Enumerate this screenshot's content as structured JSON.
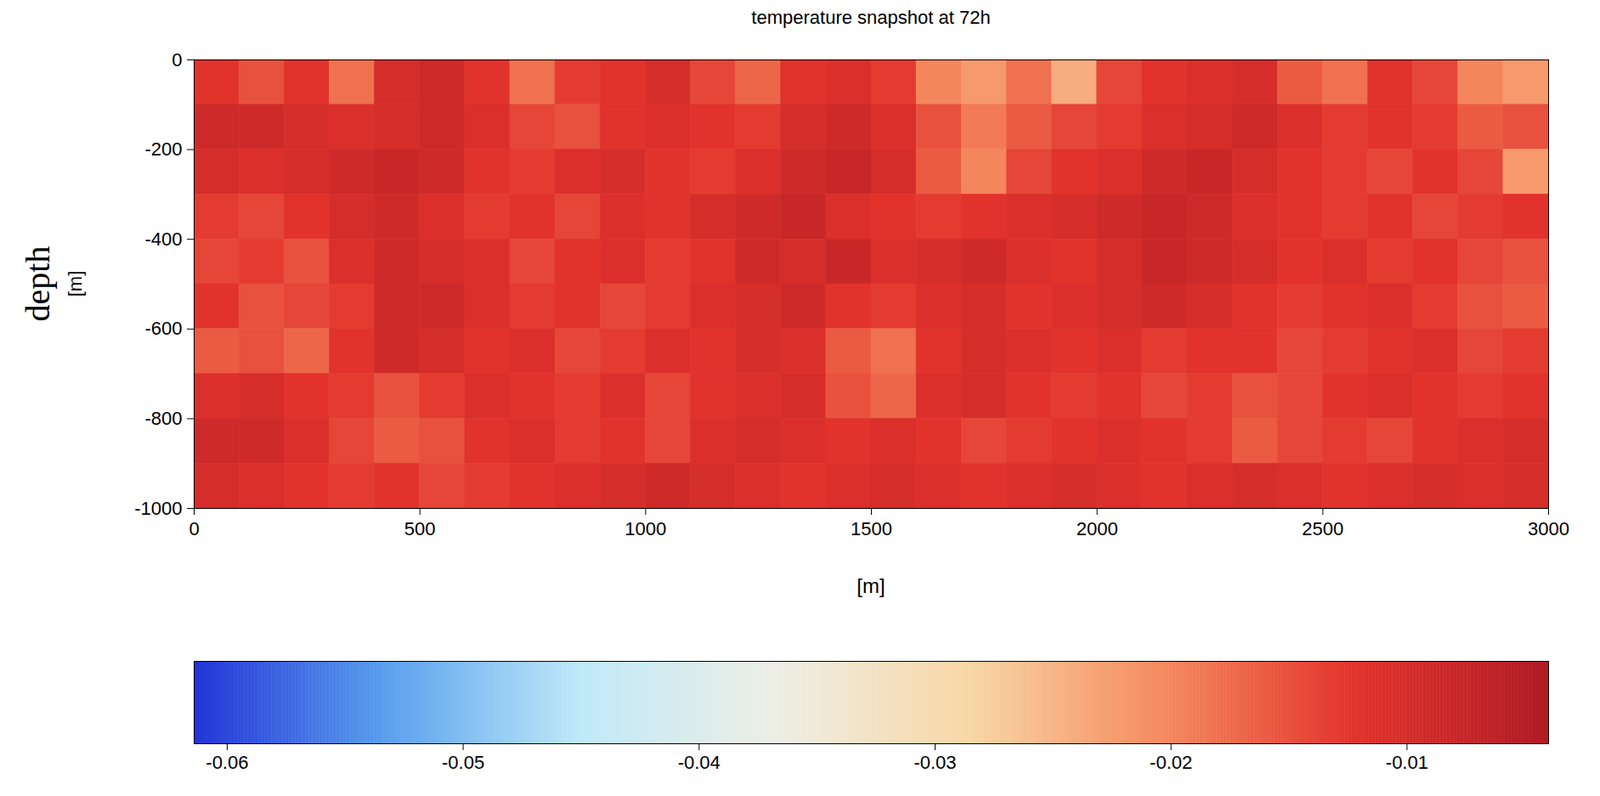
{
  "chart_data": {
    "type": "heatmap",
    "title": "temperature  snapshot at 72h",
    "xlabel": "[m]",
    "ylabel": [
      "depth",
      "[m]"
    ],
    "xlim": [
      0,
      3000
    ],
    "ylim": [
      -1000,
      0
    ],
    "xticks": [
      0,
      500,
      1000,
      1500,
      2000,
      2500,
      3000
    ],
    "yticks": [
      -1000,
      -800,
      -600,
      -400,
      -200,
      0
    ],
    "cells": {
      "x_edges": [
        0,
        100,
        200,
        300,
        400,
        500,
        600,
        700,
        800,
        900,
        1000,
        1100,
        1200,
        1300,
        1400,
        1500,
        1600,
        1700,
        1800,
        1900,
        2000,
        2100,
        2200,
        2300,
        2400,
        2500,
        2600,
        2700,
        2800,
        2900,
        3000
      ],
      "y_edges": [
        0,
        -100,
        -200,
        -300,
        -400,
        -500,
        -600,
        -700,
        -800,
        -900,
        -1000
      ],
      "values": [
        [
          -0.012,
          -0.015,
          -0.012,
          -0.018,
          -0.01,
          -0.009,
          -0.012,
          -0.018,
          -0.013,
          -0.012,
          -0.01,
          -0.014,
          -0.017,
          -0.012,
          -0.011,
          -0.013,
          -0.02,
          -0.022,
          -0.018,
          -0.024,
          -0.014,
          -0.012,
          -0.011,
          -0.01,
          -0.016,
          -0.018,
          -0.012,
          -0.014,
          -0.02,
          -0.022
        ],
        [
          -0.009,
          -0.009,
          -0.01,
          -0.011,
          -0.01,
          -0.009,
          -0.011,
          -0.014,
          -0.015,
          -0.012,
          -0.011,
          -0.012,
          -0.013,
          -0.01,
          -0.009,
          -0.011,
          -0.015,
          -0.019,
          -0.016,
          -0.014,
          -0.013,
          -0.011,
          -0.01,
          -0.009,
          -0.011,
          -0.013,
          -0.012,
          -0.013,
          -0.016,
          -0.015
        ],
        [
          -0.01,
          -0.011,
          -0.01,
          -0.009,
          -0.008,
          -0.009,
          -0.012,
          -0.013,
          -0.011,
          -0.01,
          -0.012,
          -0.013,
          -0.011,
          -0.009,
          -0.008,
          -0.01,
          -0.016,
          -0.02,
          -0.014,
          -0.012,
          -0.011,
          -0.009,
          -0.008,
          -0.01,
          -0.012,
          -0.013,
          -0.014,
          -0.012,
          -0.014,
          -0.022
        ],
        [
          -0.013,
          -0.014,
          -0.012,
          -0.01,
          -0.009,
          -0.011,
          -0.013,
          -0.012,
          -0.014,
          -0.011,
          -0.012,
          -0.01,
          -0.009,
          -0.008,
          -0.011,
          -0.012,
          -0.013,
          -0.012,
          -0.011,
          -0.01,
          -0.009,
          -0.008,
          -0.009,
          -0.011,
          -0.012,
          -0.013,
          -0.012,
          -0.014,
          -0.013,
          -0.012
        ],
        [
          -0.014,
          -0.013,
          -0.015,
          -0.011,
          -0.009,
          -0.01,
          -0.011,
          -0.014,
          -0.012,
          -0.011,
          -0.013,
          -0.012,
          -0.009,
          -0.01,
          -0.008,
          -0.011,
          -0.01,
          -0.009,
          -0.011,
          -0.012,
          -0.01,
          -0.008,
          -0.009,
          -0.01,
          -0.012,
          -0.011,
          -0.013,
          -0.012,
          -0.014,
          -0.015
        ],
        [
          -0.012,
          -0.015,
          -0.014,
          -0.013,
          -0.009,
          -0.009,
          -0.011,
          -0.013,
          -0.012,
          -0.014,
          -0.013,
          -0.011,
          -0.01,
          -0.009,
          -0.012,
          -0.013,
          -0.011,
          -0.01,
          -0.012,
          -0.011,
          -0.01,
          -0.009,
          -0.01,
          -0.012,
          -0.013,
          -0.012,
          -0.011,
          -0.013,
          -0.015,
          -0.016
        ],
        [
          -0.016,
          -0.015,
          -0.017,
          -0.012,
          -0.009,
          -0.01,
          -0.012,
          -0.011,
          -0.014,
          -0.013,
          -0.011,
          -0.012,
          -0.01,
          -0.011,
          -0.016,
          -0.018,
          -0.012,
          -0.01,
          -0.011,
          -0.012,
          -0.011,
          -0.013,
          -0.012,
          -0.012,
          -0.014,
          -0.013,
          -0.012,
          -0.011,
          -0.014,
          -0.013
        ],
        [
          -0.011,
          -0.01,
          -0.012,
          -0.013,
          -0.015,
          -0.013,
          -0.011,
          -0.012,
          -0.013,
          -0.011,
          -0.014,
          -0.012,
          -0.011,
          -0.01,
          -0.015,
          -0.017,
          -0.011,
          -0.01,
          -0.012,
          -0.013,
          -0.012,
          -0.014,
          -0.013,
          -0.015,
          -0.014,
          -0.012,
          -0.011,
          -0.012,
          -0.013,
          -0.012
        ],
        [
          -0.009,
          -0.009,
          -0.011,
          -0.014,
          -0.016,
          -0.015,
          -0.012,
          -0.011,
          -0.013,
          -0.012,
          -0.014,
          -0.011,
          -0.01,
          -0.011,
          -0.012,
          -0.011,
          -0.012,
          -0.014,
          -0.013,
          -0.012,
          -0.011,
          -0.012,
          -0.013,
          -0.016,
          -0.014,
          -0.013,
          -0.014,
          -0.012,
          -0.011,
          -0.01
        ],
        [
          -0.01,
          -0.011,
          -0.012,
          -0.013,
          -0.012,
          -0.014,
          -0.013,
          -0.012,
          -0.011,
          -0.01,
          -0.009,
          -0.01,
          -0.011,
          -0.012,
          -0.011,
          -0.01,
          -0.011,
          -0.012,
          -0.011,
          -0.01,
          -0.011,
          -0.012,
          -0.011,
          -0.01,
          -0.011,
          -0.012,
          -0.011,
          -0.01,
          -0.011,
          -0.01
        ]
      ]
    },
    "colorbar": {
      "range": [
        -0.0614,
        -0.004
      ],
      "ticks": [
        -0.06,
        -0.05,
        -0.04,
        -0.03,
        -0.02,
        -0.01
      ]
    }
  }
}
